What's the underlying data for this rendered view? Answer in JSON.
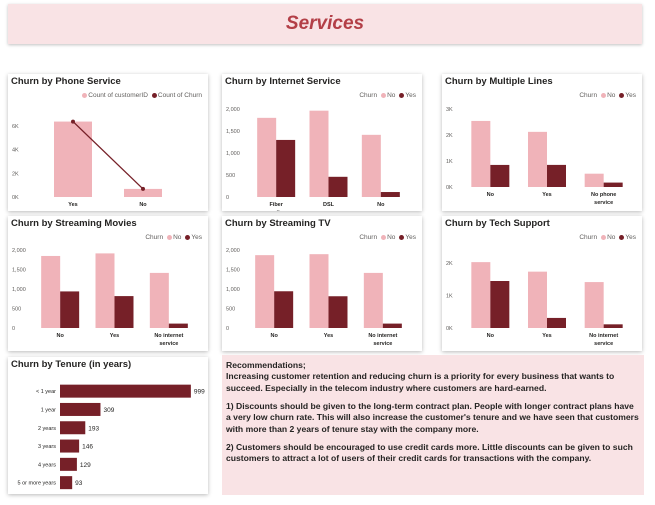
{
  "page": {
    "title": "Services"
  },
  "colors": {
    "no": "#f0b3b9",
    "yes": "#762028",
    "line": "#762028",
    "title": "#b33f47",
    "panel": "#f9e3e5"
  },
  "recommendations": {
    "heading": "Recommendations;",
    "intro": "Increasing customer retention and reducing churn is a priority for every business that wants to succeed. Especially in the telecom industry where customers are hard-earned.",
    "point1": "1) Discounts should be given to the long-term contract plan. People with longer contract plans have a very low churn rate. This will also increase the customer's tenure and we have seen that customers with more than 2 years of tenure stay with the company more.",
    "point2": "2) Customers should be encouraged to use credit cards more. Little discounts can be given to such customers to attract a lot of users of their credit cards for transactions with the company."
  },
  "chart_data": [
    {
      "id": "phone",
      "type": "bar",
      "title": "Churn by Phone Service",
      "legend": [
        "Count of customerID",
        "Count of Churn"
      ],
      "categories": [
        "Yes",
        "No"
      ],
      "series": [
        {
          "name": "Count of customerID",
          "values": [
            6361,
            682
          ]
        },
        {
          "name": "Count of Churn",
          "values": [
            6361,
            682
          ]
        }
      ],
      "yticks": [
        "0K",
        "2K",
        "4K",
        "6K"
      ],
      "ylim": [
        0,
        7000
      ]
    },
    {
      "id": "internet",
      "type": "bar",
      "title": "Churn by Internet Service",
      "legend_title": "Churn",
      "legend": [
        "No",
        "Yes"
      ],
      "categories": [
        "Fiber optic",
        "DSL",
        "No"
      ],
      "series": [
        {
          "name": "No",
          "values": [
            1799,
            1962,
            1413
          ]
        },
        {
          "name": "Yes",
          "values": [
            1297,
            459,
            113
          ]
        }
      ],
      "yticks": [
        "0",
        "500",
        "1,000",
        "1,500",
        "2,000"
      ],
      "ylim": [
        0,
        2000
      ]
    },
    {
      "id": "multiple",
      "type": "bar",
      "title": "Churn by Multiple Lines",
      "legend_title": "Churn",
      "legend": [
        "No",
        "Yes"
      ],
      "categories": [
        "No",
        "Yes",
        "No phone service"
      ],
      "series": [
        {
          "name": "No",
          "values": [
            2541,
            2121,
            512
          ]
        },
        {
          "name": "Yes",
          "values": [
            849,
            850,
            170
          ]
        }
      ],
      "yticks": [
        "0K",
        "1K",
        "2K",
        "3K"
      ],
      "ylim": [
        0,
        3000
      ]
    },
    {
      "id": "movies",
      "type": "bar",
      "title": "Churn by Streaming Movies",
      "legend_title": "Churn",
      "legend": [
        "No",
        "Yes"
      ],
      "categories": [
        "No",
        "Yes",
        "No internet service"
      ],
      "series": [
        {
          "name": "No",
          "values": [
            1847,
            1913,
            1413
          ]
        },
        {
          "name": "Yes",
          "values": [
            938,
            818,
            113
          ]
        }
      ],
      "yticks": [
        "0",
        "500",
        "1,000",
        "1,500",
        "2,000"
      ],
      "ylim": [
        0,
        2000
      ]
    },
    {
      "id": "tv",
      "type": "bar",
      "title": "Churn by Streaming TV",
      "legend_title": "Churn",
      "legend": [
        "No",
        "Yes"
      ],
      "categories": [
        "No",
        "Yes",
        "No internet service"
      ],
      "series": [
        {
          "name": "No",
          "values": [
            1868,
            1893,
            1413
          ]
        },
        {
          "name": "Yes",
          "values": [
            942,
            814,
            113
          ]
        }
      ],
      "yticks": [
        "0",
        "500",
        "1,000",
        "1,500",
        "2,000"
      ],
      "ylim": [
        0,
        2000
      ]
    },
    {
      "id": "tech",
      "type": "bar",
      "title": "Churn by Tech Support",
      "legend_title": "Churn",
      "legend": [
        "No",
        "Yes"
      ],
      "categories": [
        "No",
        "Yes",
        "No internet service"
      ],
      "series": [
        {
          "name": "No",
          "values": [
            2027,
            1734,
            1413
          ]
        },
        {
          "name": "Yes",
          "values": [
            1446,
            310,
            113
          ]
        }
      ],
      "yticks": [
        "0K",
        "1K",
        "2K"
      ],
      "ylim": [
        0,
        2400
      ]
    },
    {
      "id": "tenure",
      "type": "bar",
      "orientation": "horizontal",
      "title": "Churn by Tenure (in years)",
      "categories": [
        "< 1 year",
        "1 year",
        "2 years",
        "3 years",
        "4 years",
        "5 or more years"
      ],
      "values": [
        999,
        309,
        193,
        146,
        129,
        93
      ],
      "labels": [
        "999",
        "309",
        "193",
        "146",
        "129",
        "93"
      ],
      "xlim": [
        0,
        1000
      ]
    }
  ]
}
